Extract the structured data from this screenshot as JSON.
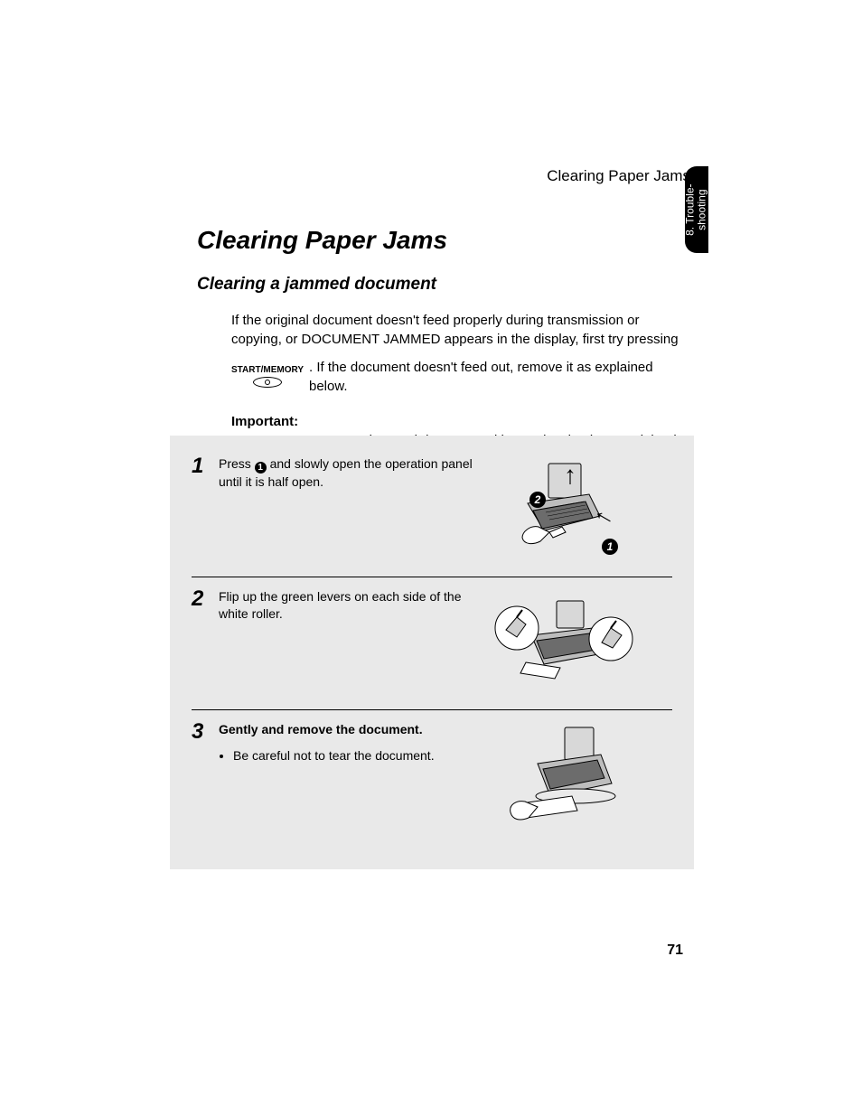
{
  "page": {
    "running_head": "Clearing Paper Jams",
    "thumb_tab": "8. Trouble-\nshooting",
    "page_number": "71"
  },
  "headings": {
    "h1": "Clearing Paper Jams",
    "h2": "Clearing a jammed document"
  },
  "intro": {
    "p1": "If the original document doesn't feed properly during transmission or copying, or DOCUMENT JAMMED appears in the display, first try pressing",
    "button_label": "START/MEMORY",
    "p2_after_button": ". If the document doesn't feed out, remove it as explained below.",
    "important_label": "Important:",
    "important_text": "Do not try to remove a jammed document without releasing it as explained below. This may damage the feeder mechanism."
  },
  "steps": [
    {
      "num": "1",
      "text_before": "Press ",
      "inline_num": "1",
      "text_after": " and slowly open the operation panel until it is half open.",
      "callouts": [
        "1",
        "2"
      ]
    },
    {
      "num": "2",
      "text": "Flip up the green levers on each side of the white roller."
    },
    {
      "num": "3",
      "text": "Gently and remove the document.",
      "bullet": "Be careful not to tear the document."
    }
  ],
  "style": {
    "bg": "#ffffff",
    "box_bg": "#e9e9e9",
    "text": "#000000"
  }
}
